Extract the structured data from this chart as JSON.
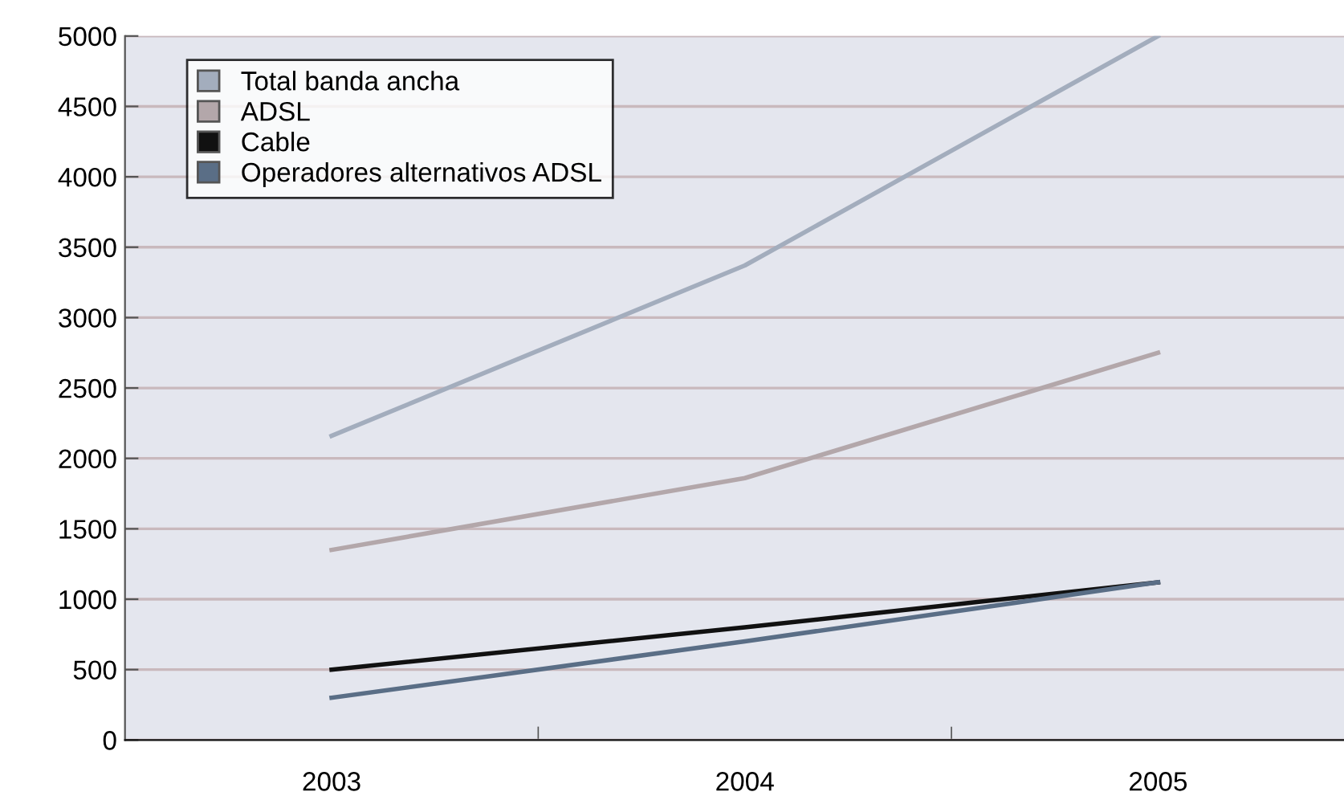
{
  "chart_data": {
    "type": "line",
    "categories": [
      "2003",
      "2004",
      "2005"
    ],
    "series": [
      {
        "name": "Total banda ancha",
        "color": "#a3adbd",
        "values": [
          2160,
          3370,
          5000
        ]
      },
      {
        "name": "ADSL",
        "color": "#b3a7aa",
        "values": [
          1350,
          1860,
          2750
        ]
      },
      {
        "name": "Cable",
        "color": "#111111",
        "values": [
          500,
          800,
          1120
        ]
      },
      {
        "name": "Operadores alternativos ADSL",
        "color": "#5a6e86",
        "values": [
          300,
          700,
          1120
        ]
      }
    ],
    "ylim": [
      0,
      5000
    ],
    "yticks": [
      0,
      500,
      1000,
      1500,
      2000,
      2500,
      3000,
      3500,
      4000,
      4500,
      5000
    ],
    "grid": "y",
    "legend": "top left",
    "marker": "none",
    "line_style": "solid"
  }
}
